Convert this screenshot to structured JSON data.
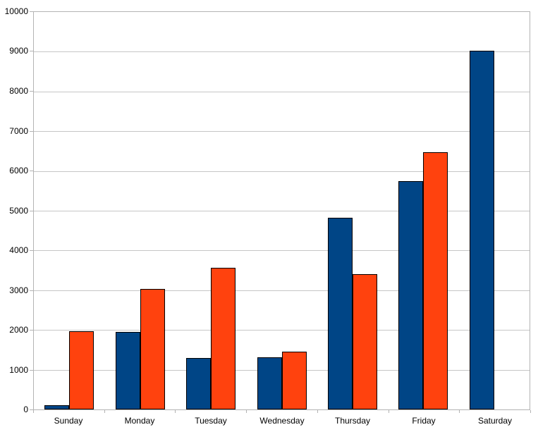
{
  "chart_data": {
    "type": "bar",
    "title": "",
    "categories": [
      "Sunday",
      "Monday",
      "Tuesday",
      "Wednesday",
      "Thursday",
      "Friday",
      "Saturday"
    ],
    "series": [
      {
        "id": "series-1",
        "color": "#004586",
        "values": [
          100,
          1950,
          1290,
          1310,
          4830,
          5750,
          9030
        ]
      },
      {
        "id": "series-2",
        "color": "#FF420E",
        "values": [
          1970,
          3030,
          3570,
          1450,
          3400,
          6470,
          null
        ]
      }
    ],
    "xlabel": "",
    "ylabel": "",
    "ylim": [
      0,
      10000
    ],
    "ytick_interval": 1000,
    "ytick_labels": [
      "0",
      "1000",
      "2000",
      "3000",
      "4000",
      "5000",
      "6000",
      "7000",
      "8000",
      "9000",
      "10000"
    ],
    "grid": true,
    "legend": "none",
    "bar_border_color": "#000000",
    "grid_color": "#c6c6c6",
    "axis_color": "#b3b3b3",
    "label_color": "#000000",
    "background_color": "#ffffff"
  }
}
